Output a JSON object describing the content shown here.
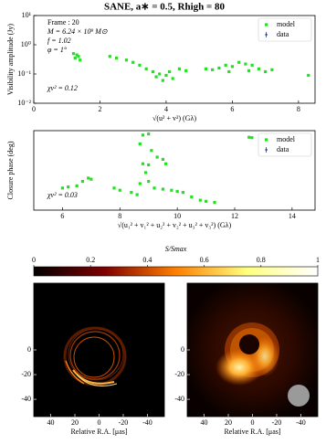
{
  "title": "SANE, a∗ = 0.5, Rhigh = 80",
  "chart_data": [
    {
      "type": "scatter",
      "log_y": true,
      "xlabel": "√(u² + v²)   (Gλ)",
      "ylabel": "Visibility amplitude (Jy)",
      "xlim": [
        0,
        8.5
      ],
      "xticks": [
        0,
        2,
        4,
        6,
        8
      ],
      "ylim": [
        0.01,
        10
      ],
      "yticks": [
        {
          "value": 0.01,
          "label": "10⁻²"
        },
        {
          "value": 0.1,
          "label": "10⁻¹"
        },
        {
          "value": 1,
          "label": "10⁰"
        },
        {
          "value": 10,
          "label": "10¹"
        }
      ],
      "annotations": [
        "Frame : 20",
        "M = 6.24 × 10⁹ M⊙",
        "f = 1.02",
        "φ = 1°",
        "χν² = 0.12"
      ],
      "legend": "upper right",
      "series": [
        {
          "name": "model",
          "color": "#22e022",
          "marker": "square",
          "x": [
            1.2,
            1.25,
            1.3,
            1.35,
            1.4,
            2.3,
            2.5,
            2.8,
            3.0,
            3.2,
            3.4,
            3.6,
            3.7,
            3.8,
            3.9,
            4.0,
            4.1,
            4.2,
            4.4,
            4.6,
            5.2,
            5.4,
            5.6,
            5.8,
            5.9,
            6.0,
            6.2,
            6.4,
            6.5,
            6.6,
            6.8,
            7.0,
            7.2,
            8.3
          ],
          "values": [
            0.5,
            0.35,
            0.45,
            0.4,
            0.3,
            0.4,
            0.35,
            0.3,
            0.25,
            0.2,
            0.15,
            0.12,
            0.08,
            0.1,
            0.06,
            0.09,
            0.12,
            0.07,
            0.15,
            0.13,
            0.15,
            0.14,
            0.16,
            0.2,
            0.12,
            0.18,
            0.25,
            0.22,
            0.13,
            0.2,
            0.15,
            0.12,
            0.14,
            0.09
          ]
        },
        {
          "name": "data",
          "color": "#1f3fd0",
          "marker": "errorbar",
          "x": [
            1.3,
            3.9,
            6.2,
            7.0
          ],
          "values": [
            0.45,
            0.06,
            0.25,
            0.12
          ]
        }
      ]
    },
    {
      "type": "scatter",
      "log_y": false,
      "xlabel": "√(u₁² + v₁² + u₂² + v₂² + u₃² + v₃²)   (Gλ)",
      "ylabel": "Closure phase (deg)",
      "xlim": [
        5,
        14.8
      ],
      "xticks": [
        6,
        8,
        10,
        12,
        14
      ],
      "ylim": [
        -180,
        180
      ],
      "annotations": [
        "χν² = 0.03"
      ],
      "legend": "upper right",
      "series": [
        {
          "name": "model",
          "color": "#22e022",
          "marker": "square",
          "x": [
            8.8,
            9.0,
            12.5,
            12.6,
            8.7,
            9.1,
            9.3,
            9.5,
            9.6,
            8.8,
            9.0,
            8.9,
            9.0,
            7.0,
            6.9,
            6.7,
            6.5,
            6.2,
            6.0,
            7.8,
            8.0,
            8.4,
            8.6,
            9.2,
            9.5,
            9.8,
            10.0,
            10.2,
            10.5,
            10.8,
            11.0,
            11.3,
            8.7
          ],
          "values": [
            160,
            165,
            150,
            148,
            120,
            90,
            60,
            50,
            30,
            30,
            25,
            -10,
            -50,
            -40,
            -35,
            -50,
            -70,
            -75,
            -80,
            -80,
            -90,
            -100,
            -110,
            -80,
            -85,
            -90,
            -95,
            -100,
            -120,
            -135,
            -140,
            -145,
            -60
          ]
        },
        {
          "name": "data",
          "color": "#1f3fd0",
          "marker": "errorbar",
          "x": [
            6.9,
            9.5,
            12.5
          ],
          "values": [
            -35,
            50,
            150
          ]
        }
      ]
    },
    {
      "type": "colorbar",
      "label": "S/Smax",
      "xlim": [
        0,
        1
      ],
      "xticks": [
        0,
        0.2,
        0.4,
        0.6,
        0.8,
        1
      ]
    },
    {
      "type": "image",
      "xlabel": "Relative R.A. [μas]",
      "xlim": [
        54,
        -54
      ],
      "xticks": [
        40,
        20,
        0,
        -20,
        -40
      ],
      "ylim": [
        -54,
        54
      ],
      "yticks": [
        -40,
        -20,
        0
      ]
    },
    {
      "type": "image",
      "xlabel": "Relative R.A. [μas]",
      "xlim": [
        54,
        -54
      ],
      "xticks": [
        40,
        20,
        0,
        -20,
        -40
      ],
      "ylim": [
        -54,
        54
      ],
      "yticks": [
        -40,
        -20,
        0
      ]
    }
  ]
}
